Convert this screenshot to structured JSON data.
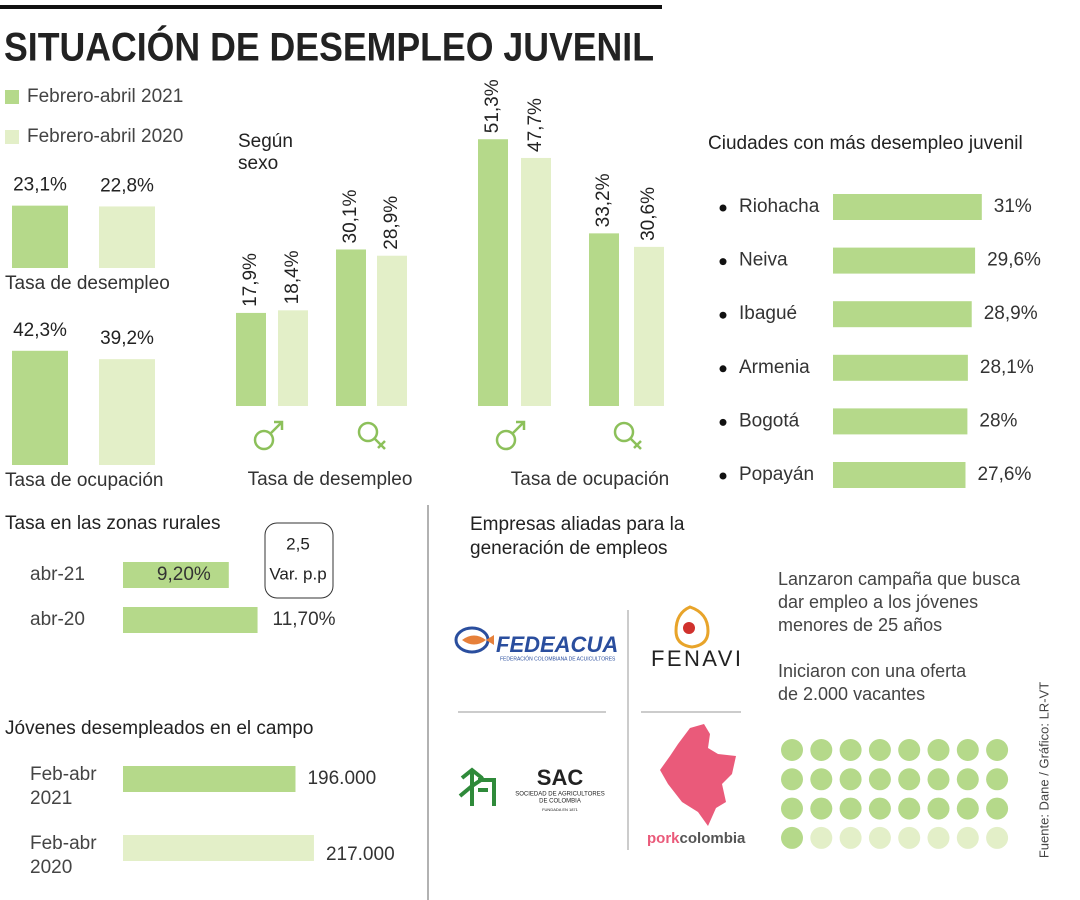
{
  "title": "SITUACIÓN DE DESEMPLEO JUVENIL",
  "legend": [
    {
      "name": "Febrero-abril 2021",
      "color": "#b5d98a"
    },
    {
      "name": "Febrero-abril 2020",
      "color": "#e3efc8"
    }
  ],
  "overall": {
    "groups": [
      {
        "label": "Tasa de desempleo",
        "values": [
          23.1,
          22.8
        ],
        "value_labels": [
          "23,1%",
          "22,8%"
        ]
      },
      {
        "label": "Tasa de ocupación",
        "values": [
          42.3,
          39.2
        ],
        "value_labels": [
          "42,3%",
          "39,2%"
        ]
      }
    ]
  },
  "by_sex": {
    "title_lines": [
      "Según",
      "sexo"
    ],
    "groups": [
      {
        "label": "Tasa de desempleo",
        "values": [
          [
            17.9,
            18.4
          ],
          [
            30.1,
            28.9
          ]
        ],
        "value_labels": [
          [
            "17,9%",
            "18,4%"
          ],
          [
            "30,1%",
            "28,9%"
          ]
        ]
      },
      {
        "label": "Tasa de ocupación",
        "values": [
          [
            51.3,
            47.7
          ],
          [
            33.2,
            30.6
          ]
        ],
        "value_labels": [
          [
            "51,3%",
            "47,7%"
          ],
          [
            "33,2%",
            "30,6%"
          ]
        ]
      }
    ]
  },
  "cities": {
    "title": "Ciudades con más desempleo juvenil",
    "categories": [
      "Riohacha",
      "Neiva",
      "Ibagué",
      "Armenia",
      "Bogotá",
      "Popayán"
    ],
    "values": [
      31,
      29.6,
      28.9,
      28.1,
      28,
      27.6
    ],
    "value_labels": [
      "31%",
      "29,6%",
      "28,9%",
      "28,1%",
      "28%",
      "27,6%"
    ]
  },
  "rural": {
    "title": "Tasa en las zonas rurales",
    "categories": [
      "abr-21",
      "abr-20"
    ],
    "values": [
      9.2,
      11.7
    ],
    "value_labels": [
      "9,20%",
      "11,70%"
    ],
    "variation": 2.5,
    "variation_label": "2,5",
    "variation_unit": "Var. p.p"
  },
  "field": {
    "title": "Jóvenes desempleados en el campo",
    "categories": [
      [
        "Feb-abr",
        "2021"
      ],
      [
        "Feb-abr",
        "2020"
      ]
    ],
    "values": [
      196000,
      217000
    ],
    "value_labels": [
      "196.000",
      "217.000"
    ]
  },
  "companies": {
    "title_lines": [
      "Empresas aliadas para la",
      "generación de empleos"
    ],
    "fedeacua": {
      "name": "FEDEACUA",
      "subtitle": "FEDERACIÓN COLOMBIANA DE ACUICULTORES"
    },
    "fenavi": {
      "name": "FENAVI"
    },
    "sac": {
      "name": "SAC",
      "subtitle_lines": [
        "SOCIEDAD DE AGRICULTORES",
        "DE COLOMBIA"
      ],
      "founded": "FUNDADA EN 1871"
    },
    "pork": {
      "name_parts": [
        "pork",
        "colombia"
      ]
    }
  },
  "campaign": {
    "text_lines": [
      "Lanzaron campaña que busca",
      "dar empleo a los jóvenes",
      "menores de 25 años"
    ],
    "offer_lines": [
      "Iniciaron con una oferta",
      "de 2.000 vacantes"
    ],
    "dots_total": 32,
    "dots_filled": 25
  },
  "source": "Fuente: Dane / Gráfico: LR-VT"
}
